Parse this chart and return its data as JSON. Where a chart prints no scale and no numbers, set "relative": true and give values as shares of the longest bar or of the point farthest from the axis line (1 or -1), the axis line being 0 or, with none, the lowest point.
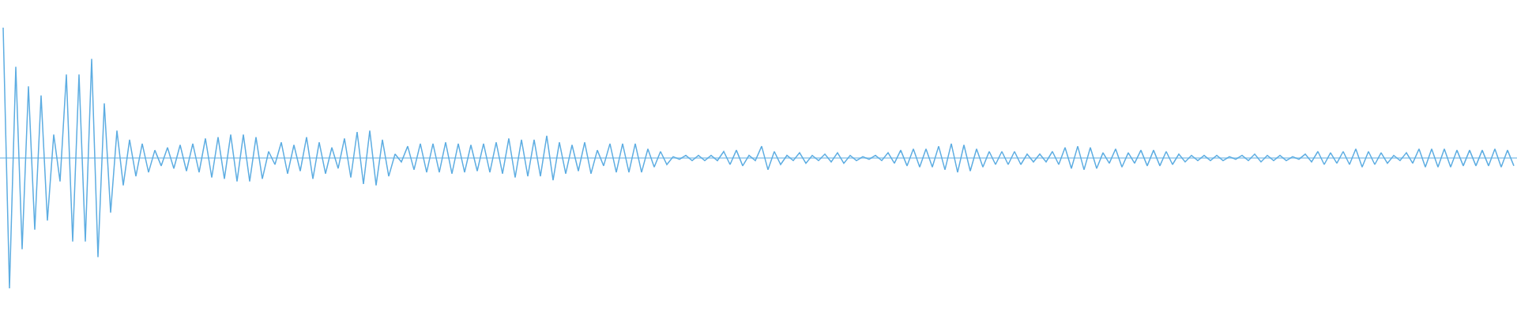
{
  "chart_data": {
    "type": "line",
    "relative": true,
    "color": "#5dade2",
    "ref_lines": [
      {
        "axis": "y",
        "value": 0,
        "color": "#5dade2"
      }
    ],
    "categories": [
      null,
      null,
      null,
      null,
      null,
      null,
      null,
      null,
      null,
      null,
      null,
      null,
      null,
      null,
      null,
      null,
      null,
      null,
      null,
      null,
      null,
      null,
      null,
      null,
      null,
      null,
      null,
      null,
      null,
      null,
      null,
      null,
      null,
      null,
      null,
      null,
      null,
      null,
      null,
      null,
      null,
      null,
      null,
      null,
      null,
      null,
      null,
      null,
      null,
      null,
      null,
      null,
      null,
      null,
      null,
      null,
      null,
      null,
      null,
      null,
      null,
      null,
      null,
      null,
      null,
      null,
      null,
      null,
      null,
      null,
      null,
      null,
      null,
      null,
      null,
      null,
      null,
      null,
      null,
      null,
      null,
      null,
      null,
      null,
      null,
      null,
      null,
      null,
      null,
      null,
      null,
      null,
      null,
      null,
      null,
      null,
      null,
      null,
      null,
      null,
      null,
      null,
      null,
      null,
      null,
      null,
      null,
      null,
      null,
      null,
      null,
      null,
      null,
      null,
      null,
      null,
      null,
      null,
      null,
      null,
      null,
      null,
      null,
      null,
      null,
      null,
      null,
      null,
      null,
      null,
      null,
      null,
      null,
      null,
      null,
      null,
      null,
      null,
      null,
      null,
      null,
      null,
      null,
      null,
      null,
      null,
      null,
      null,
      null,
      null,
      null,
      null,
      null,
      null,
      null,
      null,
      null,
      null,
      null,
      null,
      null,
      null,
      null,
      null,
      null,
      null,
      null,
      null,
      null,
      null,
      null,
      null,
      null,
      null,
      null,
      null,
      null,
      null,
      null,
      null,
      null,
      null,
      null,
      null,
      null,
      null,
      null,
      null,
      null,
      null,
      null,
      null,
      null,
      null,
      null,
      null,
      null,
      null,
      null,
      null,
      null,
      null,
      null,
      null,
      null,
      null,
      null,
      null,
      null,
      null,
      null,
      null,
      null,
      null,
      null,
      null,
      null,
      null,
      null,
      null,
      null,
      null,
      null,
      null,
      null,
      null,
      null,
      null,
      null,
      null,
      null,
      null,
      null,
      null,
      null,
      null,
      null,
      null,
      null,
      null
    ],
    "series": [
      {
        "values": [
          1,
          -1,
          0.7,
          -0.7,
          0.55,
          -0.55,
          0.48,
          -0.48,
          0.18,
          -0.18,
          0.64,
          -0.64,
          0.64,
          -0.64,
          0.76,
          -0.76,
          0.42,
          -0.42,
          0.21,
          -0.21,
          0.14,
          -0.14,
          0.11,
          -0.11,
          0.06,
          -0.06,
          0.08,
          -0.08,
          0.1,
          -0.1,
          0.11,
          -0.11,
          0.15,
          -0.15,
          0.16,
          -0.16,
          0.18,
          -0.18,
          0.18,
          -0.18,
          0.16,
          -0.16,
          0.05,
          -0.05,
          0.12,
          -0.12,
          0.1,
          -0.1,
          0.16,
          -0.16,
          0.12,
          -0.12,
          0.08,
          -0.08,
          0.15,
          -0.15,
          0.2,
          -0.2,
          0.21,
          -0.21,
          0.14,
          -0.14,
          0.03,
          -0.03,
          0.09,
          -0.09,
          0.11,
          -0.11,
          0.11,
          -0.11,
          0.12,
          -0.12,
          0.11,
          -0.11,
          0.1,
          -0.1,
          0.11,
          -0.11,
          0.12,
          -0.12,
          0.15,
          -0.15,
          0.14,
          -0.14,
          0.14,
          -0.14,
          0.17,
          -0.17,
          0.12,
          -0.12,
          0.1,
          -0.1,
          0.12,
          -0.12,
          0.06,
          -0.06,
          0.11,
          -0.11,
          0.11,
          -0.11,
          0.11,
          -0.11,
          0.07,
          -0.07,
          0.05,
          -0.05,
          0.01,
          -0.01,
          0.02,
          -0.02,
          0.02,
          -0.02,
          0.02,
          -0.02,
          0.05,
          -0.05,
          0.06,
          -0.06,
          0.02,
          -0.02,
          0.09,
          -0.09,
          0.05,
          -0.05,
          0.02,
          -0.02,
          0.04,
          -0.04,
          0.02,
          -0.02,
          0.03,
          -0.03,
          0.04,
          -0.04,
          0.02,
          -0.02,
          0.01,
          -0.01,
          0.02,
          -0.02,
          0.04,
          -0.04,
          0.06,
          -0.06,
          0.07,
          -0.07,
          0.07,
          -0.07,
          0.09,
          -0.09,
          0.11,
          -0.11,
          0.1,
          -0.1,
          0.07,
          -0.07,
          0.05,
          -0.05,
          0.05,
          -0.05,
          0.05,
          -0.05,
          0.03,
          -0.03,
          0.03,
          -0.03,
          0.05,
          -0.05,
          0.08,
          -0.08,
          0.09,
          -0.09,
          0.08,
          -0.08,
          0.04,
          -0.04,
          0.07,
          -0.07,
          0.04,
          -0.04,
          0.06,
          -0.06,
          0.06,
          -0.06,
          0.05,
          -0.05,
          0.03,
          -0.03,
          0.02,
          -0.02,
          0.02,
          -0.02,
          0.02,
          -0.02,
          0.01,
          -0.01,
          0.02,
          -0.02,
          0.03,
          -0.03,
          0.02,
          -0.02,
          0.02,
          -0.02,
          0.01,
          -0.01,
          0.03,
          -0.03,
          0.05,
          -0.05,
          0.04,
          -0.04,
          0.05,
          -0.05,
          0.07,
          -0.07,
          0.05,
          -0.05,
          0.04,
          -0.04,
          0.02,
          -0.02,
          0.04,
          -0.04,
          0.07,
          -0.07,
          0.07,
          -0.07,
          0.07,
          -0.07,
          0.06,
          -0.06,
          0.06,
          -0.06,
          0.06,
          -0.06,
          0.07,
          -0.07,
          0.06,
          -0.06
        ]
      }
    ]
  }
}
